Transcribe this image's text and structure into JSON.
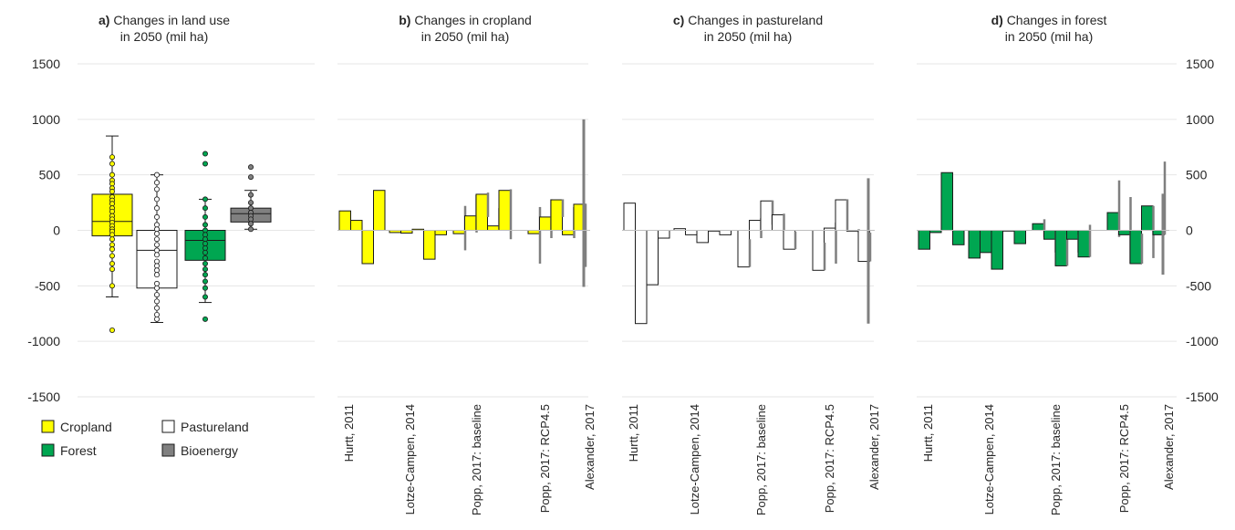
{
  "colors": {
    "cropland": "#ffff00",
    "pastureland": "#ffffff",
    "forest": "#00a651",
    "bioenergy": "#808080",
    "range_line": "#7f7f7f",
    "gridline": "#e6e6e6",
    "outline": "#1a1a1a",
    "text": "#262626"
  },
  "y_axis": {
    "min": -1500,
    "max": 1500,
    "ticks": [
      "1500",
      "1000",
      "500",
      "0",
      "-500",
      "-1000",
      "-1500"
    ]
  },
  "panels": {
    "a": {
      "letter": "a)",
      "title1": "Changes in land use",
      "title2": "in 2050 (mil ha)"
    },
    "b": {
      "letter": "b)",
      "title1": "Changes in cropland",
      "title2": "in 2050 (mil ha)"
    },
    "c": {
      "letter": "c)",
      "title1": "Changes in pastureland",
      "title2": "in 2050 (mil ha)"
    },
    "d": {
      "letter": "d)",
      "title1": "Changes in forest",
      "title2": "in 2050 (mil ha)"
    }
  },
  "legend": [
    {
      "key": "cropland",
      "label": "Cropland"
    },
    {
      "key": "pastureland",
      "label": "Pastureland"
    },
    {
      "key": "forest",
      "label": "Forest"
    },
    {
      "key": "bioenergy",
      "label": "Bioenergy"
    }
  ],
  "studies": [
    "Hurtt, 2011",
    "Lotze-Campen, 2014",
    "Popp, 2017: baseline",
    "Popp, 2017: RCP4.5",
    "Alexander, 2017"
  ],
  "chart_data": [
    {
      "type": "box",
      "panel": "a",
      "categories": [
        "Cropland",
        "Pastureland",
        "Forest",
        "Bioenergy"
      ],
      "series": [
        {
          "key": "cropland",
          "min": -600,
          "q1": -50,
          "median": 80,
          "q3": 325,
          "max": 850,
          "points": [
            660,
            600,
            500,
            450,
            420,
            380,
            350,
            300,
            270,
            240,
            200,
            170,
            130,
            100,
            70,
            40,
            10,
            -10,
            -40,
            -80,
            -130,
            -170,
            -230,
            -300,
            -350,
            -500,
            -900
          ]
        },
        {
          "key": "pastureland",
          "min": -830,
          "q1": -520,
          "median": -180,
          "q3": 0,
          "max": 500,
          "points": [
            500,
            430,
            370,
            280,
            200,
            120,
            50,
            10,
            -30,
            -80,
            -130,
            -180,
            -220,
            -280,
            -320,
            -360,
            -400,
            -480,
            -520,
            -580,
            -640,
            -700,
            -760,
            -800
          ]
        },
        {
          "key": "forest",
          "min": -650,
          "q1": -270,
          "median": -90,
          "q3": 0,
          "max": 280,
          "points": [
            690,
            600,
            280,
            200,
            120,
            50,
            0,
            -40,
            -80,
            -120,
            -160,
            -200,
            -250,
            -300,
            -350,
            -400,
            -460,
            -520,
            -600,
            -800
          ]
        },
        {
          "key": "bioenergy",
          "min": 10,
          "q1": 75,
          "median": 150,
          "q3": 200,
          "max": 360,
          "points": [
            570,
            480,
            320,
            250,
            200,
            160,
            130,
            100,
            60,
            10
          ]
        }
      ]
    },
    {
      "type": "bar",
      "panel": "b",
      "variable": "cropland",
      "groups": [
        {
          "study": "Hurtt, 2011",
          "bars": [
            {
              "v": 175
            },
            {
              "v": 90
            },
            {
              "v": -300
            },
            {
              "v": 360
            }
          ]
        },
        {
          "study": "Lotze-Campen, 2014",
          "bars": [
            {
              "v": -20
            },
            {
              "v": -25
            },
            {
              "v": 10
            },
            {
              "v": -260
            },
            {
              "v": -40
            }
          ]
        },
        {
          "study": "Popp, 2017: baseline",
          "bars": [
            {
              "v": -30,
              "lo": -180,
              "hi": 220
            },
            {
              "v": 130,
              "lo": -20,
              "hi": 320
            },
            {
              "v": 325,
              "lo": 120,
              "hi": 340
            },
            {
              "v": 40,
              "lo": 10,
              "hi": 200
            },
            {
              "v": 360,
              "lo": -80,
              "hi": 370
            }
          ]
        },
        {
          "study": "Popp, 2017: RCP4.5",
          "bars": [
            {
              "v": -30,
              "lo": -300,
              "hi": 210
            },
            {
              "v": 120,
              "lo": -70,
              "hi": 280
            },
            {
              "v": 275,
              "lo": 120,
              "hi": 280
            },
            {
              "v": -40,
              "lo": -70,
              "hi": 210
            },
            {
              "v": 235,
              "lo": -330,
              "hi": 240
            }
          ]
        },
        {
          "study": "Alexander, 2017",
          "range": [
            -510,
            1000
          ]
        }
      ]
    },
    {
      "type": "bar",
      "panel": "c",
      "variable": "pastureland",
      "groups": [
        {
          "study": "Hurtt, 2011",
          "bars": [
            {
              "v": 245
            },
            {
              "v": -840
            },
            {
              "v": -490
            },
            {
              "v": -70
            }
          ]
        },
        {
          "study": "Lotze-Campen, 2014",
          "bars": [
            {
              "v": 15
            },
            {
              "v": -40
            },
            {
              "v": -110
            },
            {
              "v": 0
            },
            {
              "v": -40
            }
          ]
        },
        {
          "study": "Popp, 2017: baseline",
          "bars": [
            {
              "v": -330,
              "lo": -330,
              "hi": -80
            },
            {
              "v": 90,
              "lo": -70,
              "hi": 110
            },
            {
              "v": 265,
              "lo": 50,
              "hi": 270
            },
            {
              "v": 140,
              "lo": -10,
              "hi": 150
            },
            {
              "v": -170,
              "lo": -170,
              "hi": -10
            }
          ]
        },
        {
          "study": "Popp, 2017: RCP4.5",
          "bars": [
            {
              "v": -360,
              "lo": -360,
              "hi": -110
            },
            {
              "v": 20,
              "lo": -300,
              "hi": 70
            },
            {
              "v": 275,
              "lo": -10,
              "hi": 280
            },
            {
              "v": 0,
              "lo": -20,
              "hi": 10
            },
            {
              "v": -280,
              "lo": -280,
              "hi": -20
            }
          ]
        },
        {
          "study": "Alexander, 2017",
          "range": [
            -840,
            470
          ]
        }
      ]
    },
    {
      "type": "bar",
      "panel": "d",
      "variable": "forest",
      "groups": [
        {
          "study": "Hurtt, 2011",
          "bars": [
            {
              "v": -170
            },
            {
              "v": -20
            },
            {
              "v": 520
            },
            {
              "v": -130
            }
          ]
        },
        {
          "study": "Lotze-Campen, 2014",
          "bars": [
            {
              "v": -250
            },
            {
              "v": -200
            },
            {
              "v": -350
            },
            {
              "v": 0
            },
            {
              "v": -120
            }
          ]
        },
        {
          "study": "Popp, 2017: baseline",
          "bars": [
            {
              "v": 60,
              "lo": -60,
              "hi": 100
            },
            {
              "v": -80,
              "lo": -200,
              "hi": 0
            },
            {
              "v": -320,
              "lo": -320,
              "hi": -40
            },
            {
              "v": -80,
              "lo": -200,
              "hi": -40
            },
            {
              "v": -240,
              "lo": -240,
              "hi": 50
            }
          ]
        },
        {
          "study": "Popp, 2017: RCP4.5",
          "bars": [
            {
              "v": 160,
              "lo": -60,
              "hi": 450
            },
            {
              "v": -40,
              "lo": -300,
              "hi": 300
            },
            {
              "v": -300,
              "lo": -300,
              "hi": -30
            },
            {
              "v": 220,
              "lo": -250,
              "hi": 220
            },
            {
              "v": -40,
              "lo": -40,
              "hi": 620
            }
          ]
        },
        {
          "study": "Alexander, 2017",
          "range": [
            -400,
            330
          ]
        }
      ]
    }
  ]
}
